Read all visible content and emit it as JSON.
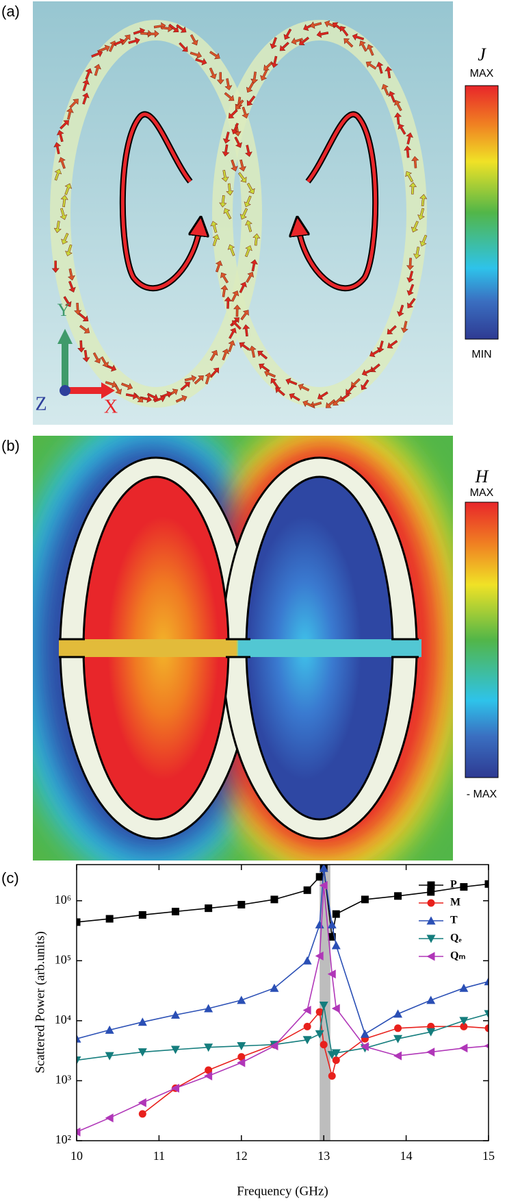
{
  "panel_labels": [
    "(a)",
    "(b)",
    "(c)"
  ],
  "panel_a": {
    "colorbar_title": "J",
    "colorbar_max": "MAX",
    "colorbar_min": "MIN",
    "axis_y": "Y",
    "axis_z": "Z",
    "axis_x": "X"
  },
  "panel_b": {
    "colorbar_title": "H",
    "colorbar_max": "MAX",
    "colorbar_min": "- MAX"
  },
  "chart_data": {
    "type": "line",
    "xlabel": "Frequency (GHz)",
    "ylabel": "Scattered Power (arb.units)",
    "x": [
      10,
      10.4,
      10.8,
      11.2,
      11.6,
      12,
      12.4,
      12.8,
      12.95,
      13,
      13.1,
      13.15,
      13.5,
      13.9,
      14.3,
      14.7,
      15
    ],
    "series": [
      {
        "name": "P",
        "color": "#000000",
        "marker": "square",
        "values": [
          440000,
          500000,
          580000,
          660000,
          750000,
          860000,
          1050000,
          1500000,
          2500000,
          3500000,
          250000,
          600000,
          1050000,
          1200000,
          1400000,
          1700000,
          1900000
        ]
      },
      {
        "name": "M",
        "color": "#e8201c",
        "marker": "circle",
        "values": [
          null,
          null,
          280,
          750,
          1500,
          2500,
          4000,
          8000,
          14000,
          4000,
          1200,
          2200,
          5000,
          7500,
          8000,
          8000,
          7500
        ]
      },
      {
        "name": "T",
        "color": "#2a4fb5",
        "marker": "triangle-up",
        "values": [
          5000,
          7000,
          9500,
          12500,
          16000,
          22000,
          35000,
          100000,
          400000,
          3500000,
          400000,
          180000,
          6000,
          13000,
          22000,
          35000,
          45000
        ]
      },
      {
        "name": "Qₑ",
        "color": "#147d7d",
        "marker": "triangle-down",
        "values": [
          2200,
          2600,
          3000,
          3300,
          3600,
          3800,
          4000,
          4800,
          6000,
          18000,
          2700,
          2900,
          3500,
          5000,
          6500,
          10000,
          13000
        ]
      },
      {
        "name": "Qₘ",
        "color": "#b036b8",
        "marker": "triangle-left",
        "values": [
          140,
          240,
          430,
          750,
          1200,
          2000,
          3800,
          15000,
          120000,
          1800000,
          60000,
          16000,
          3700,
          2600,
          3000,
          3500,
          3800
        ]
      }
    ],
    "shaded_region": [
      12.95,
      13.08
    ],
    "xlim": [
      10,
      15
    ],
    "xticks": [
      10,
      11,
      12,
      13,
      14,
      15
    ],
    "yscale": "log",
    "ylim": [
      100,
      4000000
    ],
    "yticks": [
      {
        "value": 100,
        "label": "10²"
      },
      {
        "value": 1000,
        "label": "10³"
      },
      {
        "value": 10000,
        "label": "10⁴"
      },
      {
        "value": 100000,
        "label": "10⁵"
      },
      {
        "value": 1000000,
        "label": "10⁶"
      }
    ],
    "legend": "upper right"
  }
}
